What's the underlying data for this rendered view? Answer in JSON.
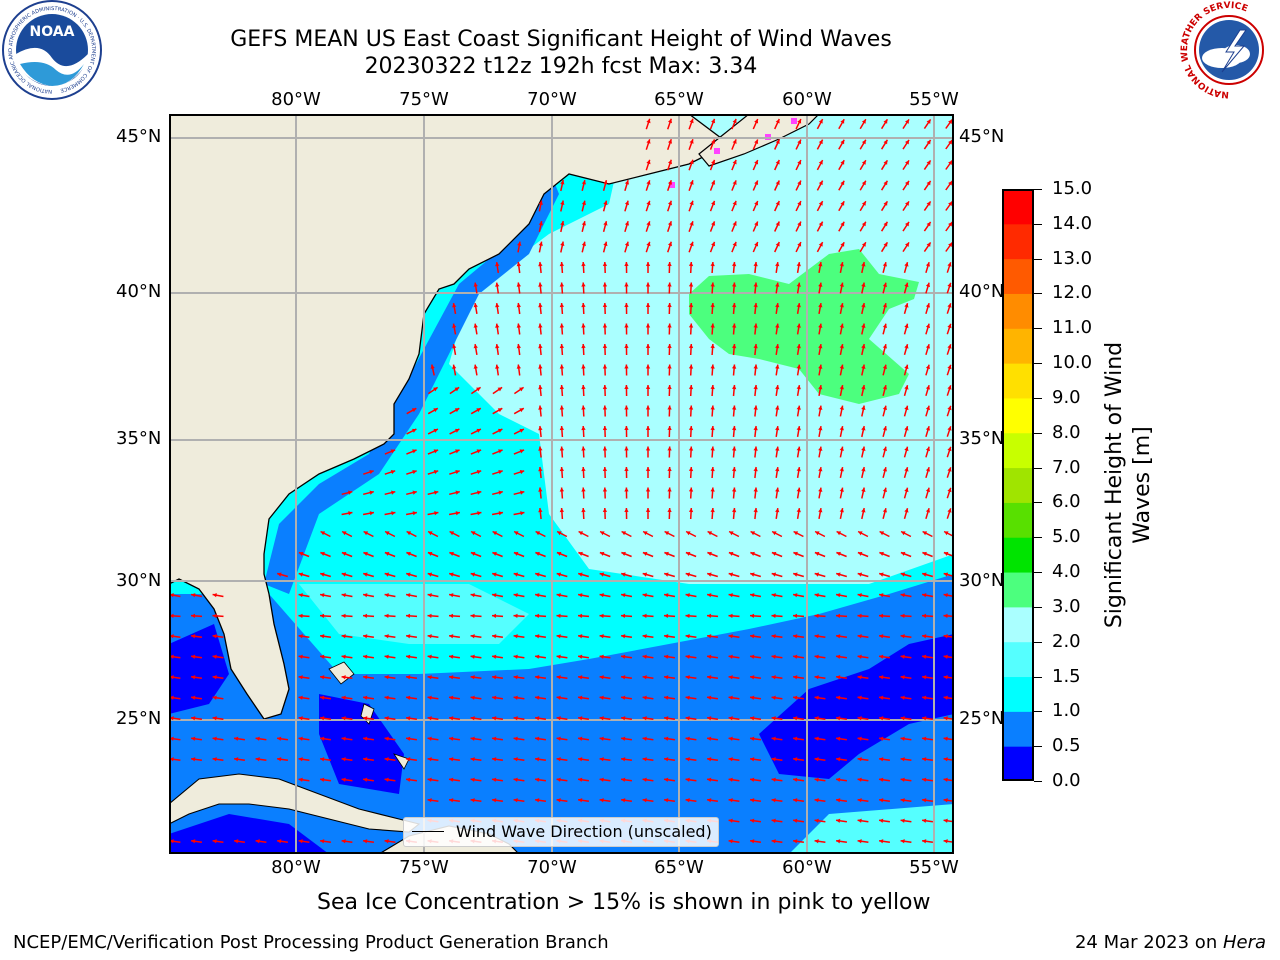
{
  "title": {
    "line1": "GEFS MEAN US East Coast Significant Height of Wind Waves",
    "line2": "20230322 t12z 192h fcst   Max: 3.34"
  },
  "logos": {
    "noaa_text": "NOAA",
    "noaa_ring_text": "NATIONAL OCEANIC AND ATMOSPHERIC ADMINISTRATION · U.S. DEPARTMENT OF COMMERCE",
    "nws_ring_text": "NATIONAL WEATHER SERVICE"
  },
  "map": {
    "lon_labels": [
      "80°W",
      "75°W",
      "70°W",
      "65°W",
      "60°W",
      "55°W"
    ],
    "lat_labels": [
      "45°N",
      "40°N",
      "35°N",
      "30°N",
      "25°N"
    ],
    "legend_label": "Wind Wave Direction (unscaled)",
    "arrow_color": "#ff0000",
    "land_color": "#efecdc"
  },
  "colorbar": {
    "label_line1": "Significant Height of Wind",
    "label_line2": "Waves [m]",
    "ticks": [
      "15.0",
      "14.0",
      "13.0",
      "12.0",
      "11.0",
      "10.0",
      "9.0",
      "8.0",
      "7.0",
      "6.0",
      "5.0",
      "4.0",
      "3.0",
      "2.0",
      "1.5",
      "1.0",
      "0.5",
      "0.0"
    ],
    "colors_bottom_to_top": [
      "#0000ff",
      "#0a7fff",
      "#00ffff",
      "#55ffff",
      "#aaffff",
      "#4cff7e",
      "#00e400",
      "#58e000",
      "#a0e400",
      "#c8ff00",
      "#ffff00",
      "#ffe000",
      "#ffb400",
      "#ff8c00",
      "#ff5a00",
      "#ff2a00",
      "#ff0000"
    ]
  },
  "annotation": "Sea Ice Concentration > 15% is shown in pink to yellow",
  "footer": {
    "left": "NCEP/EMC/Verification Post Processing Product Generation Branch",
    "date": "24 Mar 2023 on ",
    "host": "Hera"
  }
}
